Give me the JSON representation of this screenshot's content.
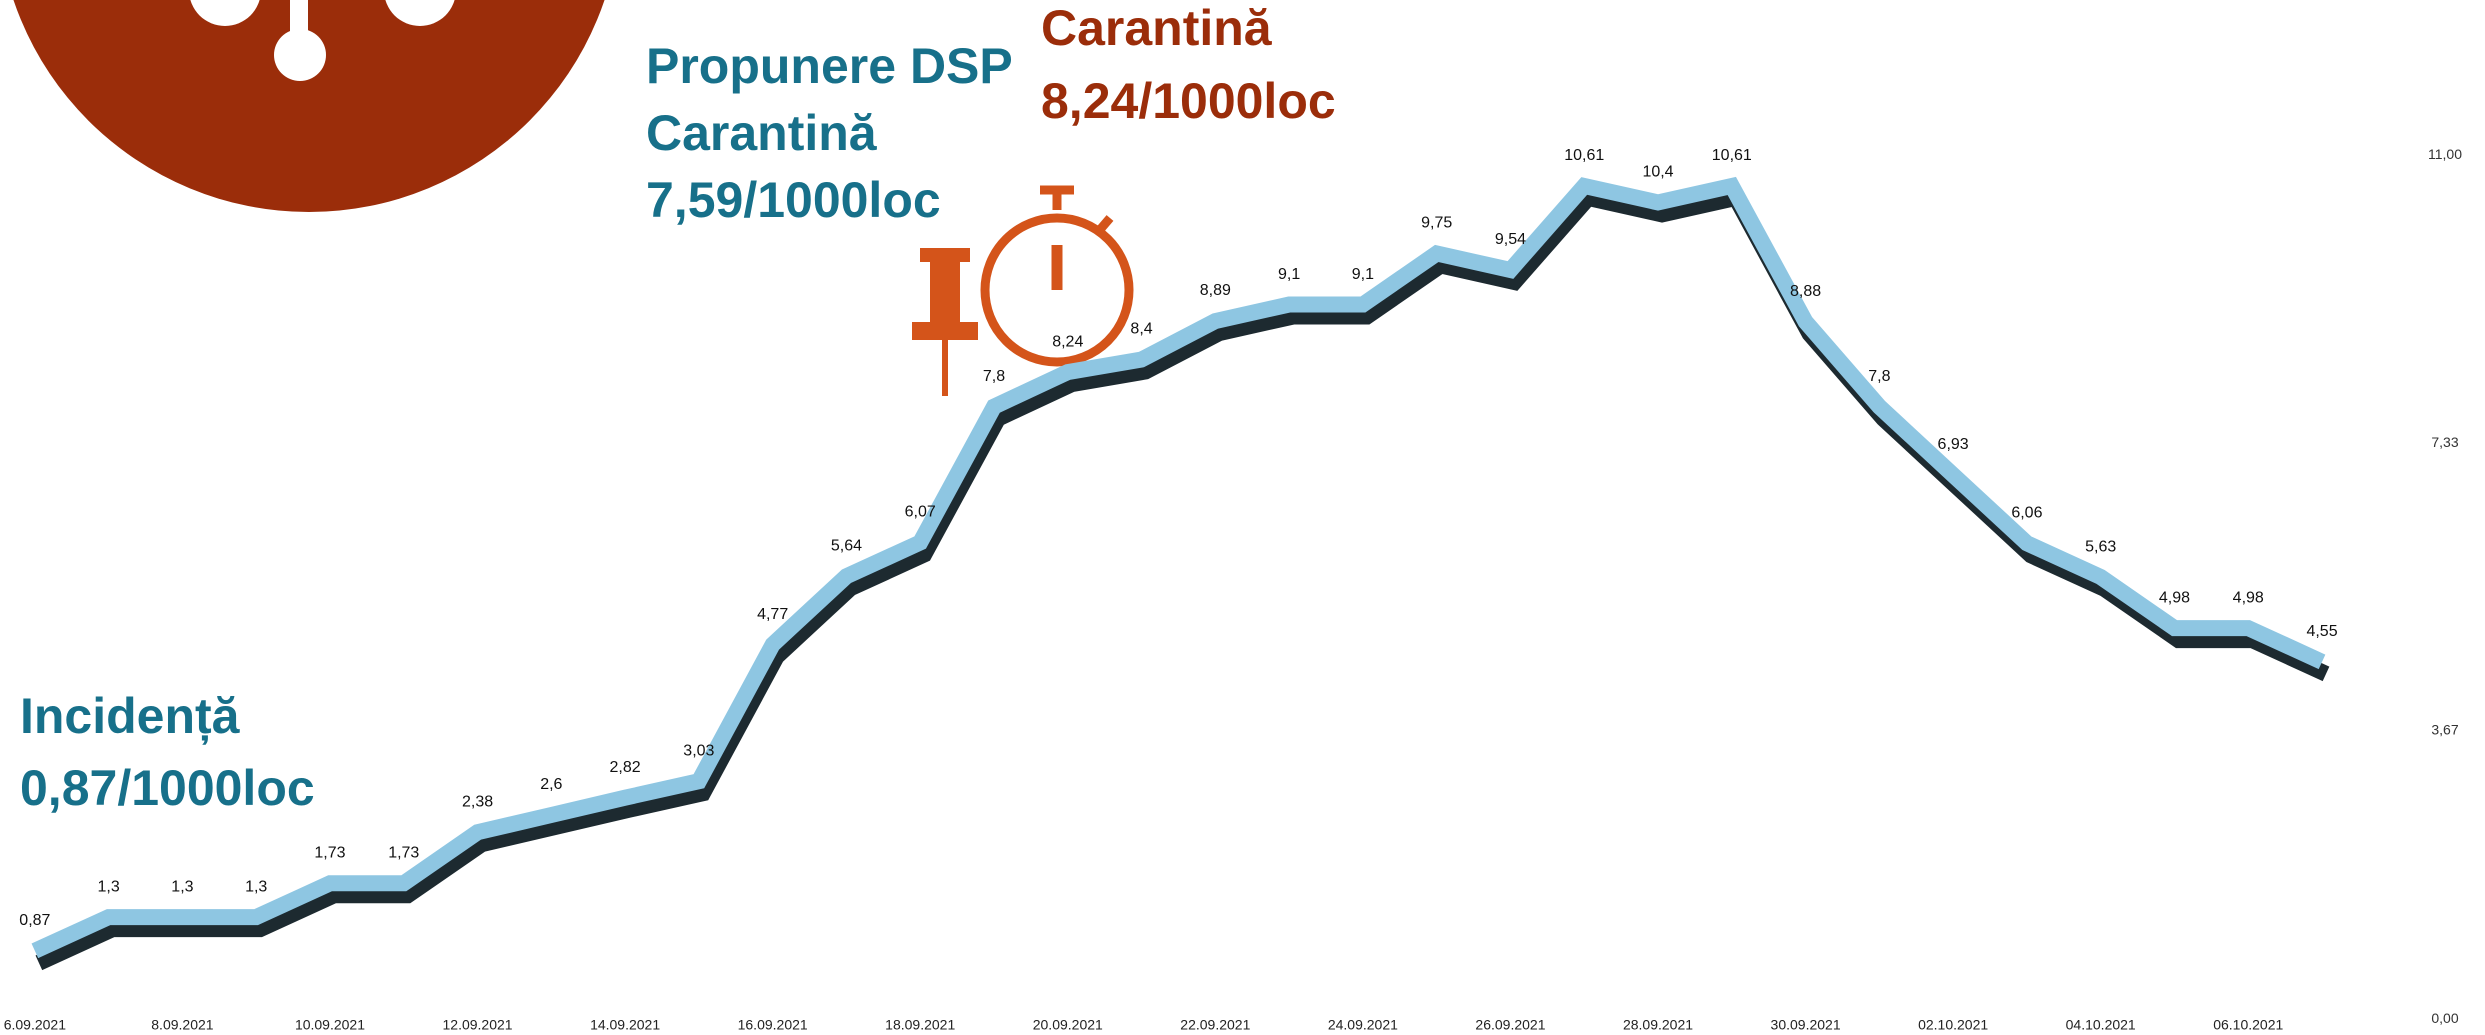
{
  "chart_data": {
    "type": "line",
    "categories": [
      "6.09.2021",
      null,
      "8.09.2021",
      null,
      "10.09.2021",
      null,
      "12.09.2021",
      null,
      "14.09.2021",
      null,
      "16.09.2021",
      null,
      "18.09.2021",
      null,
      "20.09.2021",
      null,
      "22.09.2021",
      null,
      "24.09.2021",
      null,
      "26.09.2021",
      null,
      "28.09.2021",
      null,
      "30.09.2021",
      null,
      "02.10.2021",
      null,
      "04.10.2021",
      null,
      "06.10.2021",
      null
    ],
    "series": [
      {
        "color": "#8ec6e2",
        "values": [
          0.87,
          1.3,
          1.3,
          1.3,
          1.73,
          1.73,
          2.38,
          2.6,
          2.82,
          3.03,
          4.77,
          5.64,
          6.07,
          7.8,
          8.24,
          8.4,
          8.89,
          9.1,
          9.1,
          9.75,
          9.54,
          10.61,
          10.4,
          10.61,
          8.88,
          7.8,
          6.93,
          6.06,
          5.63,
          4.98,
          4.98,
          4.55
        ],
        "value_labels": [
          "0,87",
          "1,3",
          "1,3",
          "1,3",
          "1,73",
          "1,73",
          "2,38",
          "2,6",
          "2,82",
          "3,03",
          "4,77",
          "5,64",
          "6,07",
          "7,8",
          "8,24",
          "8,4",
          "8,89",
          "9,1",
          "9,1",
          "9,75",
          "9,54",
          "10,61",
          "10,4",
          "10,61",
          "8,88",
          "7,8",
          "6,93",
          "6,06",
          "5,63",
          "4,98",
          "4,98",
          "4,55"
        ]
      }
    ],
    "ylim": [
      0,
      11
    ],
    "yticks": [
      {
        "value": 0,
        "label": "0,00"
      },
      {
        "value": 3.67,
        "label": "3,67"
      },
      {
        "value": 7.33,
        "label": "7,33"
      },
      {
        "value": 11,
        "label": "11,00"
      }
    ],
    "grid": false,
    "annotations": [
      {
        "lines": [
          "Incidență",
          "0,87/1000loc"
        ],
        "color": "#17708a"
      },
      {
        "lines": [
          "Propunere DSP",
          "Carantină",
          "7,59/1000loc"
        ],
        "color": "#17708a"
      },
      {
        "lines": [
          "Carantină",
          "8,24/1000loc"
        ],
        "color": "#9b2d0a"
      }
    ]
  }
}
